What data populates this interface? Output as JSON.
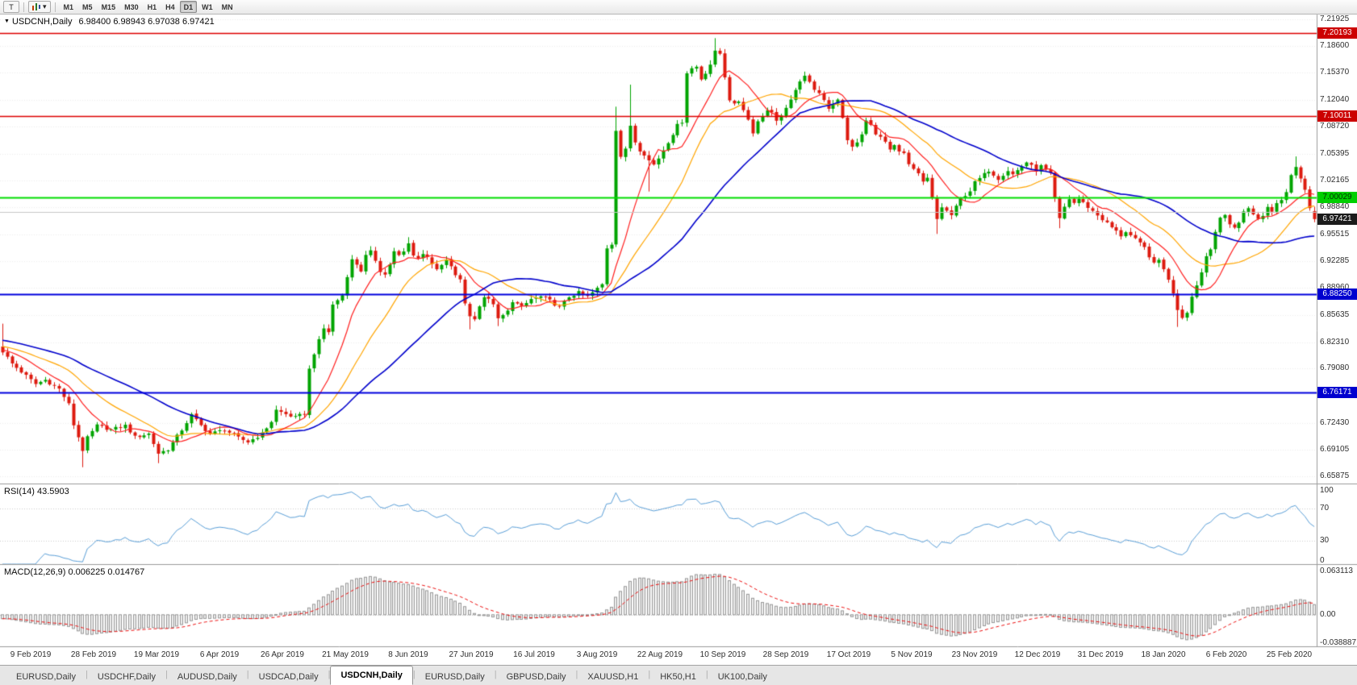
{
  "toolbar": {
    "tool_button_label": "T",
    "dropdown_glyph": "▾",
    "timeframes": [
      "M1",
      "M5",
      "M15",
      "M30",
      "H1",
      "H4",
      "D1",
      "W1",
      "MN"
    ],
    "active_timeframe": "D1"
  },
  "main_title": {
    "marker": "▼",
    "symbol": "USDCNH,Daily",
    "ohlc": "6.98400 6.98943 6.97038 6.97421"
  },
  "chart_data": {
    "type": "candlestick",
    "symbol": "USDCNH",
    "period": "Daily",
    "current_ohlc": {
      "open": "6.98400",
      "high": "6.98943",
      "low": "6.97038",
      "close": "6.97421"
    },
    "bid_price": 6.97421,
    "candles_count": 279,
    "candle_colors": {
      "bull": "#00a400",
      "bear": "#dd1a0f"
    },
    "price_axis_ticks": [
      "7.21925",
      "7.18600",
      "7.15370",
      "7.12040",
      "7.08720",
      "7.05395",
      "7.02165",
      "6.98840",
      "6.95515",
      "6.92285",
      "6.88960",
      "6.85635",
      "6.82310",
      "6.79080",
      "6.72430",
      "6.69105",
      "6.65875"
    ],
    "price_badges": [
      {
        "text": "7.20193",
        "price": 7.20193,
        "bg": "#cc0000",
        "fg": "#ffffff"
      },
      {
        "text": "7.10011",
        "price": 7.10011,
        "bg": "#cc0000",
        "fg": "#ffffff"
      },
      {
        "text": "7.00029",
        "price": 7.00029,
        "bg": "#00cf00",
        "fg": "#003300"
      },
      {
        "text": "6.97421",
        "price": 6.97421,
        "bg": "#1b1b1b",
        "fg": "#ffffff"
      },
      {
        "text": "6.88250",
        "price": 6.8825,
        "bg": "#0000cf",
        "fg": "#ffffff"
      },
      {
        "text": "6.76171",
        "price": 6.76171,
        "bg": "#0000cf",
        "fg": "#ffffff"
      }
    ],
    "horizontal_lines": [
      {
        "price": 7.20193,
        "color": "#dd0000",
        "width": 1.4
      },
      {
        "price": 7.10011,
        "color": "#dd0000",
        "width": 1.4
      },
      {
        "price": 7.00029,
        "color": "#00dd00",
        "width": 2
      },
      {
        "price": 6.8825,
        "color": "#0000dd",
        "width": 2
      },
      {
        "price": 6.76171,
        "color": "#0000dd",
        "width": 2
      },
      {
        "price": 6.983,
        "color": "#c6c6c6",
        "width": 1
      }
    ],
    "moving_averages": [
      {
        "name": "fast",
        "period": 10,
        "color": "#ff2020",
        "lw": 1.2
      },
      {
        "name": "mid",
        "period": 21,
        "color": "#ffa500",
        "lw": 1.2
      },
      {
        "name": "slow",
        "period": 40,
        "color": "#0000cc",
        "lw": 1.6
      }
    ],
    "x_axis_labels": [
      "9 Feb 2019",
      "28 Feb 2019",
      "19 Mar 2019",
      "6 Apr 2019",
      "26 Apr 2019",
      "21 May 2019",
      "8 Jun 2019",
      "27 Jun 2019",
      "16 Jul 2019",
      "3 Aug 2019",
      "22 Aug 2019",
      "10 Sep 2019",
      "28 Sep 2019",
      "17 Oct 2019",
      "5 Nov 2019",
      "23 Nov 2019",
      "12 Dec 2019",
      "31 Dec 2019",
      "18 Jan 2020",
      "6 Feb 2020",
      "25 Feb 2020"
    ],
    "indicators": {
      "rsi": {
        "label": "RSI(14) 43.5903",
        "period": 14,
        "value": 43.5903,
        "axis_ticks": [
          "100",
          "70",
          "30",
          "0"
        ],
        "levels": [
          70,
          30
        ],
        "color": "#5a9fd8"
      },
      "macd": {
        "label": "MACD(12,26,9) 0.006225 0.014767",
        "fast": 12,
        "slow": 26,
        "signal_period": 9,
        "value": 0.006225,
        "signal_value": 0.014767,
        "axis_ticks": [
          "0.063113",
          "0.00",
          "-0.038887"
        ],
        "hist_fill": "#efefef",
        "hist_stroke": "#979797",
        "signal_color": "#ee1111"
      }
    },
    "price_path": [
      [
        0,
        6.812
      ],
      [
        2,
        6.797
      ],
      [
        4,
        6.787
      ],
      [
        7,
        6.772
      ],
      [
        9,
        6.777
      ],
      [
        12,
        6.766
      ],
      [
        14,
        6.747
      ],
      [
        15,
        6.722
      ],
      [
        16,
        6.707
      ],
      [
        17,
        6.691
      ],
      [
        18,
        6.706
      ],
      [
        20,
        6.721
      ],
      [
        23,
        6.716
      ],
      [
        26,
        6.721
      ],
      [
        28,
        6.707
      ],
      [
        31,
        6.711
      ],
      [
        33,
        6.687
      ],
      [
        35,
        6.692
      ],
      [
        38,
        6.716
      ],
      [
        40,
        6.734
      ],
      [
        42,
        6.721
      ],
      [
        44,
        6.711
      ],
      [
        47,
        6.716
      ],
      [
        50,
        6.706
      ],
      [
        52,
        6.701
      ],
      [
        55,
        6.711
      ],
      [
        57,
        6.726
      ],
      [
        58,
        6.74
      ],
      [
        60,
        6.735
      ],
      [
        62,
        6.731
      ],
      [
        64,
        6.736
      ],
      [
        65,
        6.79
      ],
      [
        66,
        6.81
      ],
      [
        67,
        6.825
      ],
      [
        68,
        6.84
      ],
      [
        69,
        6.836
      ],
      [
        70,
        6.869
      ],
      [
        71,
        6.875
      ],
      [
        72,
        6.881
      ],
      [
        73,
        6.905
      ],
      [
        74,
        6.924
      ],
      [
        75,
        6.919
      ],
      [
        76,
        6.911
      ],
      [
        77,
        6.929
      ],
      [
        78,
        6.934
      ],
      [
        79,
        6.924
      ],
      [
        80,
        6.911
      ],
      [
        81,
        6.906
      ],
      [
        82,
        6.919
      ],
      [
        83,
        6.934
      ],
      [
        84,
        6.929
      ],
      [
        85,
        6.934
      ],
      [
        86,
        6.944
      ],
      [
        87,
        6.931
      ],
      [
        88,
        6.926
      ],
      [
        89,
        6.931
      ],
      [
        90,
        6.929
      ],
      [
        92,
        6.911
      ],
      [
        94,
        6.924
      ],
      [
        96,
        6.906
      ],
      [
        97,
        6.899
      ],
      [
        98,
        6.871
      ],
      [
        99,
        6.856
      ],
      [
        100,
        6.851
      ],
      [
        101,
        6.869
      ],
      [
        102,
        6.879
      ],
      [
        104,
        6.871
      ],
      [
        105,
        6.851
      ],
      [
        106,
        6.856
      ],
      [
        107,
        6.861
      ],
      [
        108,
        6.874
      ],
      [
        110,
        6.866
      ],
      [
        112,
        6.876
      ],
      [
        114,
        6.879
      ],
      [
        116,
        6.874
      ],
      [
        118,
        6.866
      ],
      [
        120,
        6.879
      ],
      [
        122,
        6.884
      ],
      [
        124,
        6.879
      ],
      [
        126,
        6.889
      ],
      [
        127,
        6.894
      ],
      [
        128,
        6.939
      ],
      [
        129,
        6.944
      ],
      [
        130,
        7.084
      ],
      [
        131,
        7.051
      ],
      [
        132,
        7.059
      ],
      [
        133,
        7.089
      ],
      [
        134,
        7.069
      ],
      [
        135,
        7.059
      ],
      [
        136,
        7.054
      ],
      [
        137,
        7.046
      ],
      [
        138,
        7.041
      ],
      [
        139,
        7.049
      ],
      [
        140,
        7.059
      ],
      [
        141,
        7.069
      ],
      [
        142,
        7.079
      ],
      [
        143,
        7.089
      ],
      [
        144,
        7.094
      ],
      [
        145,
        7.154
      ],
      [
        146,
        7.159
      ],
      [
        147,
        7.161
      ],
      [
        148,
        7.146
      ],
      [
        149,
        7.154
      ],
      [
        150,
        7.164
      ],
      [
        151,
        7.179
      ],
      [
        152,
        7.177
      ],
      [
        153,
        7.149
      ],
      [
        154,
        7.121
      ],
      [
        155,
        7.114
      ],
      [
        156,
        7.119
      ],
      [
        157,
        7.109
      ],
      [
        158,
        7.096
      ],
      [
        159,
        7.081
      ],
      [
        160,
        7.094
      ],
      [
        161,
        7.101
      ],
      [
        162,
        7.109
      ],
      [
        163,
        7.104
      ],
      [
        164,
        7.096
      ],
      [
        165,
        7.101
      ],
      [
        166,
        7.109
      ],
      [
        167,
        7.119
      ],
      [
        168,
        7.134
      ],
      [
        169,
        7.141
      ],
      [
        170,
        7.149
      ],
      [
        171,
        7.144
      ],
      [
        172,
        7.134
      ],
      [
        173,
        7.129
      ],
      [
        174,
        7.119
      ],
      [
        175,
        7.111
      ],
      [
        176,
        7.114
      ],
      [
        177,
        7.119
      ],
      [
        178,
        7.099
      ],
      [
        179,
        7.071
      ],
      [
        180,
        7.064
      ],
      [
        181,
        7.069
      ],
      [
        182,
        7.079
      ],
      [
        183,
        7.094
      ],
      [
        184,
        7.089
      ],
      [
        185,
        7.079
      ],
      [
        186,
        7.074
      ],
      [
        187,
        7.069
      ],
      [
        188,
        7.059
      ],
      [
        189,
        7.064
      ],
      [
        190,
        7.059
      ],
      [
        191,
        7.054
      ],
      [
        192,
        7.041
      ],
      [
        193,
        7.034
      ],
      [
        194,
        7.029
      ],
      [
        195,
        7.019
      ],
      [
        196,
        7.024
      ],
      [
        197,
        6.999
      ],
      [
        198,
        6.974
      ],
      [
        199,
        6.989
      ],
      [
        200,
        6.984
      ],
      [
        201,
        6.979
      ],
      [
        202,
        6.989
      ],
      [
        203,
        6.999
      ],
      [
        204,
        7.004
      ],
      [
        205,
        7.009
      ],
      [
        206,
        7.019
      ],
      [
        207,
        7.024
      ],
      [
        208,
        7.029
      ],
      [
        209,
        7.034
      ],
      [
        210,
        7.029
      ],
      [
        211,
        7.024
      ],
      [
        212,
        7.029
      ],
      [
        213,
        7.034
      ],
      [
        214,
        7.029
      ],
      [
        215,
        7.034
      ],
      [
        216,
        7.039
      ],
      [
        217,
        7.044
      ],
      [
        218,
        7.039
      ],
      [
        219,
        7.034
      ],
      [
        220,
        7.039
      ],
      [
        221,
        7.034
      ],
      [
        222,
        7.029
      ],
      [
        223,
        6.999
      ],
      [
        224,
        6.974
      ],
      [
        225,
        6.989
      ],
      [
        226,
        6.999
      ],
      [
        227,
        6.994
      ],
      [
        228,
        6.999
      ],
      [
        229,
        6.994
      ],
      [
        230,
        6.989
      ],
      [
        231,
        6.984
      ],
      [
        232,
        6.979
      ],
      [
        233,
        6.974
      ],
      [
        234,
        6.969
      ],
      [
        235,
        6.964
      ],
      [
        236,
        6.959
      ],
      [
        237,
        6.954
      ],
      [
        238,
        6.959
      ],
      [
        239,
        6.954
      ],
      [
        240,
        6.949
      ],
      [
        241,
        6.944
      ],
      [
        242,
        6.939
      ],
      [
        243,
        6.929
      ],
      [
        244,
        6.919
      ],
      [
        245,
        6.924
      ],
      [
        246,
        6.914
      ],
      [
        247,
        6.899
      ],
      [
        248,
        6.884
      ],
      [
        249,
        6.864
      ],
      [
        250,
        6.854
      ],
      [
        251,
        6.861
      ],
      [
        252,
        6.879
      ],
      [
        253,
        6.894
      ],
      [
        254,
        6.909
      ],
      [
        255,
        6.929
      ],
      [
        256,
        6.939
      ],
      [
        257,
        6.959
      ],
      [
        258,
        6.974
      ],
      [
        259,
        6.979
      ],
      [
        260,
        6.969
      ],
      [
        261,
        6.964
      ],
      [
        262,
        6.969
      ],
      [
        263,
        6.984
      ],
      [
        264,
        6.989
      ],
      [
        265,
        6.979
      ],
      [
        266,
        6.974
      ],
      [
        267,
        6.979
      ],
      [
        268,
        6.989
      ],
      [
        269,
        6.984
      ],
      [
        270,
        6.994
      ],
      [
        271,
        6.999
      ],
      [
        272,
        7.009
      ],
      [
        273,
        7.029
      ],
      [
        274,
        7.039
      ],
      [
        275,
        7.024
      ],
      [
        276,
        7.009
      ],
      [
        277,
        6.989
      ],
      [
        278,
        6.974
      ]
    ],
    "special_wicks": [
      [
        0,
        "h",
        6.846
      ],
      [
        17,
        "l",
        6.67
      ],
      [
        33,
        "l",
        6.675
      ],
      [
        86,
        "h",
        6.952
      ],
      [
        99,
        "l",
        6.839
      ],
      [
        105,
        "l",
        6.843
      ],
      [
        130,
        "h",
        7.112
      ],
      [
        133,
        "h",
        7.139
      ],
      [
        137,
        "l",
        7.008
      ],
      [
        151,
        "h",
        7.196
      ],
      [
        198,
        "l",
        6.956
      ],
      [
        224,
        "l",
        6.963
      ],
      [
        249,
        "l",
        6.842
      ],
      [
        274,
        "h",
        7.051
      ]
    ]
  },
  "tabs": {
    "active_index": 4,
    "items": [
      {
        "label": "EURUSD,Daily"
      },
      {
        "label": "USDCHF,Daily"
      },
      {
        "label": "AUDUSD,Daily"
      },
      {
        "label": "USDCAD,Daily"
      },
      {
        "label": "USDCNH,Daily"
      },
      {
        "label": "EURUSD,Daily"
      },
      {
        "label": "GBPUSD,Daily"
      },
      {
        "label": "XAUUSD,H1"
      },
      {
        "label": "HK50,H1"
      },
      {
        "label": "UK100,Daily"
      }
    ]
  }
}
